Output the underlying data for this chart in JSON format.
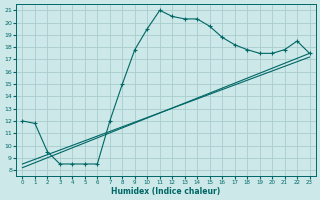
{
  "xlabel": "Humidex (Indice chaleur)",
  "background_color": "#cce8e8",
  "grid_color": "#aacccc",
  "line_color": "#006666",
  "xlim": [
    -0.5,
    23.5
  ],
  "ylim": [
    7.5,
    21.5
  ],
  "xticks": [
    0,
    1,
    2,
    3,
    4,
    5,
    6,
    7,
    8,
    9,
    10,
    11,
    12,
    13,
    14,
    15,
    16,
    17,
    18,
    19,
    20,
    21,
    22,
    23
  ],
  "yticks": [
    8,
    9,
    10,
    11,
    12,
    13,
    14,
    15,
    16,
    17,
    18,
    19,
    20,
    21
  ],
  "line1_x": [
    0,
    1,
    2,
    3,
    4,
    5,
    6,
    7,
    8,
    9,
    10,
    11,
    12,
    13,
    14,
    15,
    16,
    17,
    18,
    19,
    20,
    21,
    22,
    23
  ],
  "line1_y": [
    12.0,
    11.8,
    9.5,
    8.5,
    8.5,
    8.5,
    8.5,
    12.0,
    15.0,
    17.8,
    19.5,
    21.0,
    20.5,
    20.3,
    20.3,
    19.7,
    18.8,
    18.2,
    17.8,
    17.5,
    17.5,
    17.8,
    18.5,
    17.5
  ],
  "line2_x": [
    0,
    23
  ],
  "line2_y": [
    8.2,
    17.5
  ],
  "line3_x": [
    0,
    23
  ],
  "line3_y": [
    8.5,
    17.2
  ]
}
